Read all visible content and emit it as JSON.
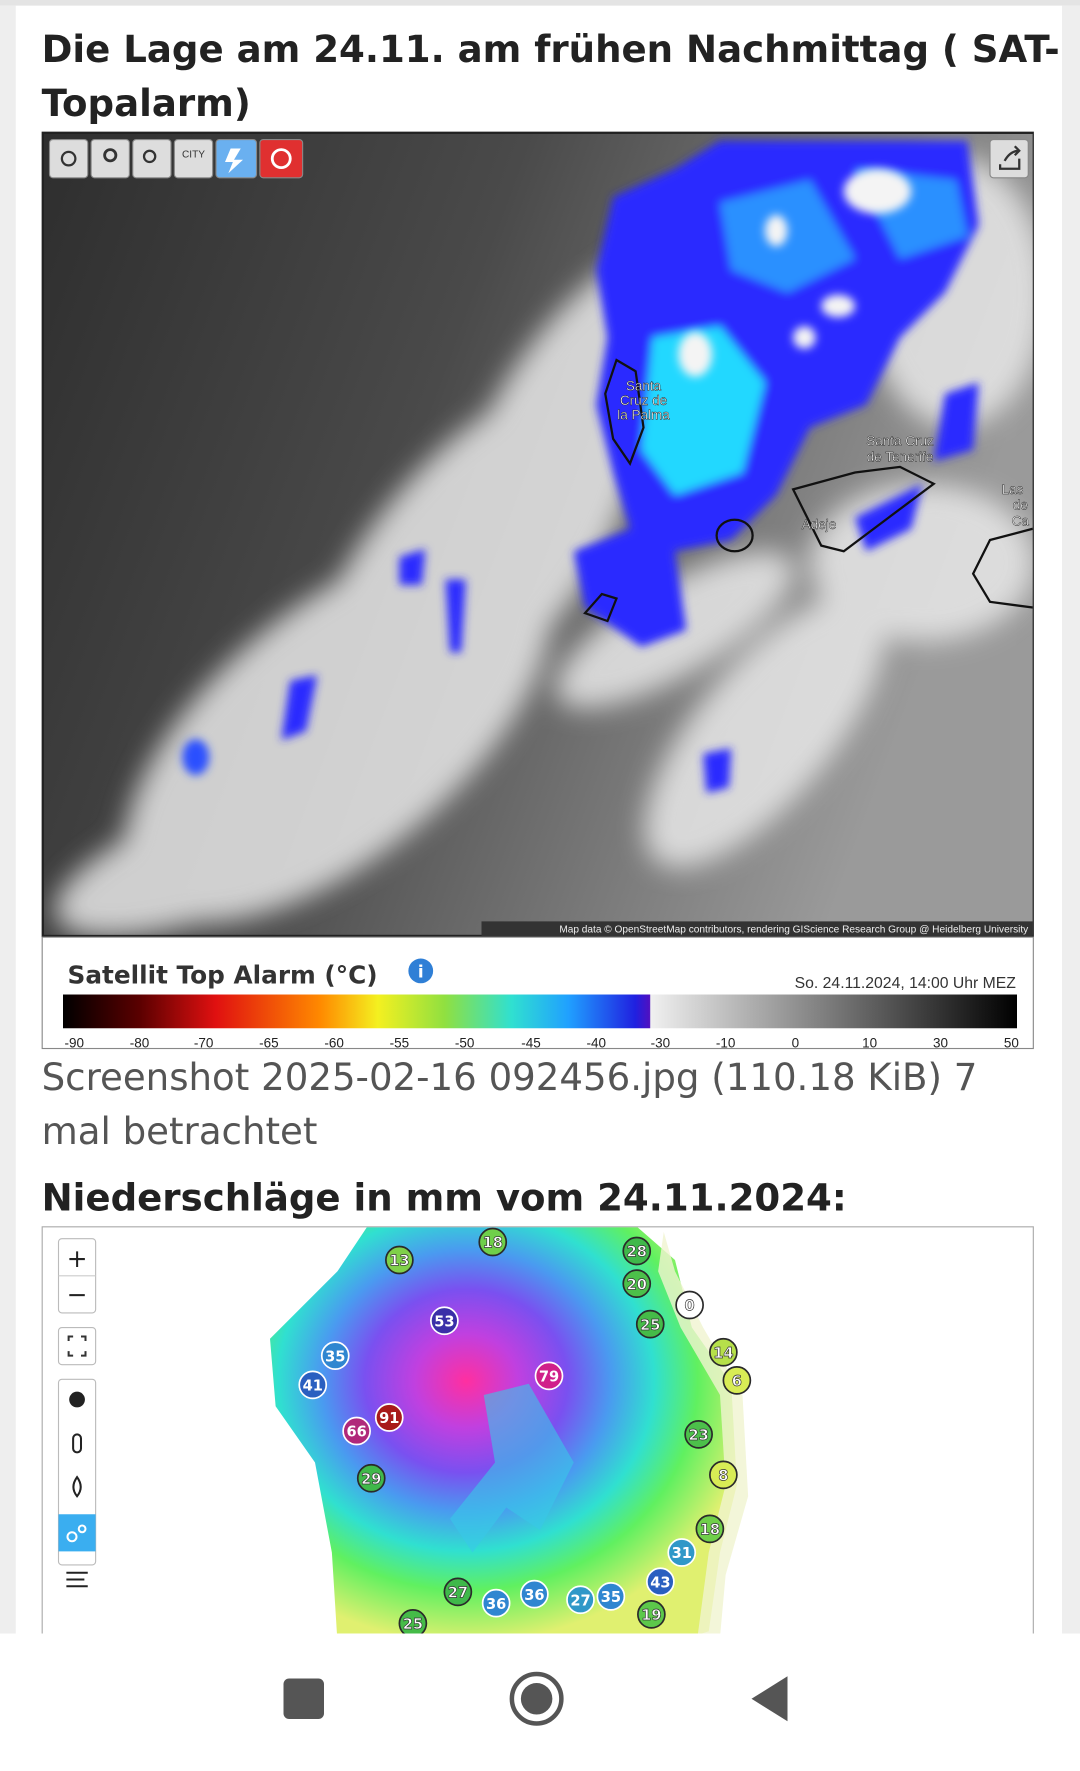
{
  "header": {
    "title": [
      "Die Lage am 24.11. am frühen Nachmittag ( SAT-",
      "Topalarm)"
    ]
  },
  "satellite_map": {
    "toolbar_city": "CITY",
    "labels": [
      "Santa",
      "Cruz de",
      "la Palma",
      "Santa Cruz",
      "de Tenerife",
      "Adeje",
      "Las",
      "de",
      "Ca"
    ],
    "attribution": "Map data © OpenStreetMap contributors, rendering GIScience Research Group @ Heidelberg University"
  },
  "legend": {
    "title": "Satellit Top Alarm (°C)",
    "timestamp": "So. 24.11.2024, 14:00 Uhr MEZ",
    "scale": [
      -90,
      -80,
      -70,
      -65,
      -60,
      -55,
      -50,
      -45,
      -40,
      -30,
      -10,
      0,
      10,
      30,
      50
    ]
  },
  "caption": [
    "Screenshot 2025-02-16 092456.jpg (110.18 KiB) 7",
    "mal betrachtet"
  ],
  "precip": {
    "heading": "Niederschläge in mm vom 24.11.2024:",
    "zoom_in": "+",
    "zoom_out": "−",
    "stations": [
      {
        "value": 13,
        "color": "#7fd04a"
      },
      {
        "value": 18,
        "color": "#6fcf4a"
      },
      {
        "value": 28,
        "color": "#3fb84a"
      },
      {
        "value": 20,
        "color": "#4cc04a"
      },
      {
        "value": 0,
        "color": "#ffffff"
      },
      {
        "value": 25,
        "color": "#45bb48"
      },
      {
        "value": 53,
        "color": "#3a2fa8"
      },
      {
        "value": 14,
        "color": "#b6e04a"
      },
      {
        "value": 6,
        "color": "#d8ec55"
      },
      {
        "value": 35,
        "color": "#2f86d0"
      },
      {
        "value": 41,
        "color": "#2a5fc0"
      },
      {
        "value": 79,
        "color": "#d0208a"
      },
      {
        "value": 91,
        "color": "#a81a1a"
      },
      {
        "value": 66,
        "color": "#b0287a"
      },
      {
        "value": 23,
        "color": "#4cc04a"
      },
      {
        "value": 29,
        "color": "#3fb84a"
      },
      {
        "value": 8,
        "color": "#d8ec55"
      },
      {
        "value": 18,
        "color": "#6fcf4a"
      },
      {
        "value": 31,
        "color": "#2f98c8"
      },
      {
        "value": 43,
        "color": "#2a5fc0"
      },
      {
        "value": 27,
        "color": "#3fb84a"
      },
      {
        "value": 36,
        "color": "#2f86d0"
      },
      {
        "value": 36,
        "color": "#2f86d0"
      },
      {
        "value": 27,
        "color": "#2f98c8"
      },
      {
        "value": 35,
        "color": "#2f86d0"
      },
      {
        "value": 19,
        "color": "#5cc84a"
      },
      {
        "value": 25,
        "color": "#45bb48"
      }
    ]
  }
}
